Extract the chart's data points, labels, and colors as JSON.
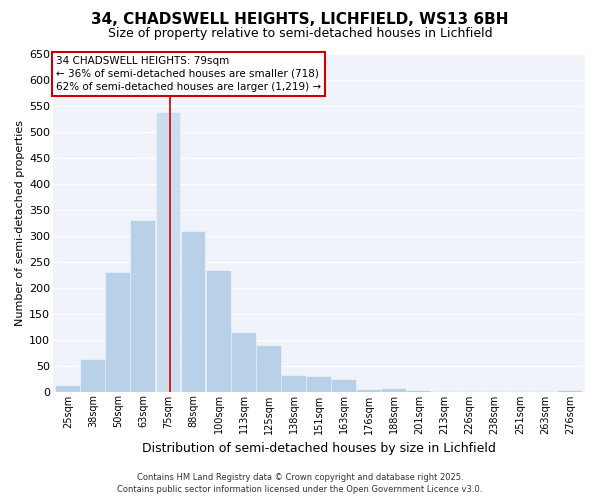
{
  "title": "34, CHADSWELL HEIGHTS, LICHFIELD, WS13 6BH",
  "subtitle": "Size of property relative to semi-detached houses in Lichfield",
  "xlabel": "Distribution of semi-detached houses by size in Lichfield",
  "ylabel": "Number of semi-detached properties",
  "bar_labels": [
    "25sqm",
    "38sqm",
    "50sqm",
    "63sqm",
    "75sqm",
    "88sqm",
    "100sqm",
    "113sqm",
    "125sqm",
    "138sqm",
    "151sqm",
    "163sqm",
    "176sqm",
    "188sqm",
    "201sqm",
    "213sqm",
    "226sqm",
    "238sqm",
    "251sqm",
    "263sqm",
    "276sqm"
  ],
  "bar_values": [
    10,
    60,
    228,
    328,
    536,
    308,
    232,
    113,
    88,
    30,
    27,
    22,
    2,
    5,
    1,
    0,
    0,
    0,
    0,
    0,
    1
  ],
  "bar_color": "#b8d0e8",
  "highlight_bar_index": 4,
  "highlight_bar_color": "#ccddf0",
  "vline_color": "#cc0000",
  "ylim": [
    0,
    650
  ],
  "yticks": [
    0,
    50,
    100,
    150,
    200,
    250,
    300,
    350,
    400,
    450,
    500,
    550,
    600,
    650
  ],
  "annotation_title": "34 CHADSWELL HEIGHTS: 79sqm",
  "annotation_line1": "← 36% of semi-detached houses are smaller (718)",
  "annotation_line2": "62% of semi-detached houses are larger (1,219) →",
  "annotation_box_facecolor": "#ffffff",
  "annotation_box_edgecolor": "#cc0000",
  "footer_line1": "Contains HM Land Registry data © Crown copyright and database right 2025.",
  "footer_line2": "Contains public sector information licensed under the Open Government Licence v3.0.",
  "background_color": "#ffffff",
  "plot_bg_color": "#f0f4fa",
  "grid_color": "#ffffff",
  "title_fontsize": 11,
  "subtitle_fontsize": 9,
  "xlabel_fontsize": 9,
  "ylabel_fontsize": 8,
  "tick_fontsize": 7,
  "footer_fontsize": 6
}
